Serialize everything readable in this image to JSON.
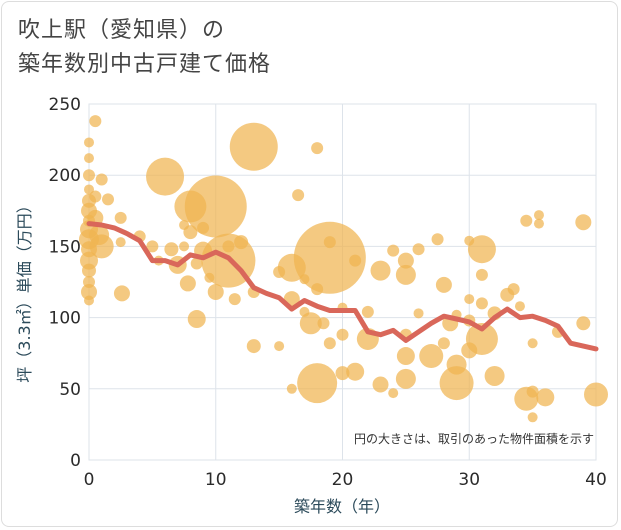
{
  "title_line1": "吹上駅（愛知県）の",
  "title_line2": "築年数別中古戸建て価格",
  "chart_data": {
    "type": "scatter",
    "title": "吹上駅（愛知県）の 築年数別中古戸建て価格",
    "xlabel": "築年数（年）",
    "ylabel": "坪（3.3㎡）単価（万円）",
    "xlim": [
      0,
      40
    ],
    "ylim": [
      0,
      250
    ],
    "xticks": [
      0,
      10,
      20,
      30,
      40
    ],
    "yticks": [
      0,
      50,
      100,
      150,
      200,
      250
    ],
    "grid": true,
    "annotation": "円の大きさは、取引のあった物件面積を示す",
    "colors": {
      "bubble": "#f0b450",
      "line": "#d9675a",
      "grid": "#dde3ea"
    },
    "bubbles": [
      {
        "x": 0,
        "y": 223,
        "r": 5
      },
      {
        "x": 0,
        "y": 212,
        "r": 5
      },
      {
        "x": 0,
        "y": 200,
        "r": 6
      },
      {
        "x": 0,
        "y": 190,
        "r": 5
      },
      {
        "x": 0,
        "y": 182,
        "r": 7
      },
      {
        "x": 0,
        "y": 175,
        "r": 8
      },
      {
        "x": 0,
        "y": 168,
        "r": 6
      },
      {
        "x": 0,
        "y": 162,
        "r": 9
      },
      {
        "x": 0,
        "y": 155,
        "r": 10
      },
      {
        "x": 0,
        "y": 148,
        "r": 8
      },
      {
        "x": 0,
        "y": 140,
        "r": 9
      },
      {
        "x": 0,
        "y": 133,
        "r": 7
      },
      {
        "x": 0,
        "y": 125,
        "r": 6
      },
      {
        "x": 0,
        "y": 118,
        "r": 8
      },
      {
        "x": 0,
        "y": 112,
        "r": 5
      },
      {
        "x": 0.5,
        "y": 238,
        "r": 6
      },
      {
        "x": 0.5,
        "y": 185,
        "r": 6
      },
      {
        "x": 0.5,
        "y": 170,
        "r": 8
      },
      {
        "x": 0.8,
        "y": 158,
        "r": 10
      },
      {
        "x": 1,
        "y": 150,
        "r": 12
      },
      {
        "x": 1,
        "y": 197,
        "r": 6
      },
      {
        "x": 1.5,
        "y": 183,
        "r": 6
      },
      {
        "x": 2.5,
        "y": 170,
        "r": 6
      },
      {
        "x": 2.5,
        "y": 153,
        "r": 5
      },
      {
        "x": 2.6,
        "y": 117,
        "r": 8
      },
      {
        "x": 4,
        "y": 157,
        "r": 6
      },
      {
        "x": 5,
        "y": 150,
        "r": 6
      },
      {
        "x": 5.5,
        "y": 140,
        "r": 5
      },
      {
        "x": 6,
        "y": 199,
        "r": 19
      },
      {
        "x": 6.5,
        "y": 148,
        "r": 7
      },
      {
        "x": 7,
        "y": 137,
        "r": 9
      },
      {
        "x": 7.5,
        "y": 165,
        "r": 5
      },
      {
        "x": 7.5,
        "y": 150,
        "r": 5
      },
      {
        "x": 7.8,
        "y": 124,
        "r": 8
      },
      {
        "x": 8,
        "y": 160,
        "r": 7
      },
      {
        "x": 8,
        "y": 178,
        "r": 16
      },
      {
        "x": 8.5,
        "y": 138,
        "r": 6
      },
      {
        "x": 8.5,
        "y": 99,
        "r": 9
      },
      {
        "x": 9,
        "y": 163,
        "r": 6
      },
      {
        "x": 9,
        "y": 147,
        "r": 9
      },
      {
        "x": 9.5,
        "y": 128,
        "r": 5
      },
      {
        "x": 10,
        "y": 178,
        "r": 31
      },
      {
        "x": 10,
        "y": 118,
        "r": 8
      },
      {
        "x": 11,
        "y": 140,
        "r": 27
      },
      {
        "x": 11,
        "y": 150,
        "r": 6
      },
      {
        "x": 11.5,
        "y": 113,
        "r": 6
      },
      {
        "x": 12,
        "y": 153,
        "r": 7
      },
      {
        "x": 13,
        "y": 220,
        "r": 24
      },
      {
        "x": 13,
        "y": 118,
        "r": 6
      },
      {
        "x": 13,
        "y": 80,
        "r": 7
      },
      {
        "x": 15,
        "y": 132,
        "r": 6
      },
      {
        "x": 15,
        "y": 80,
        "r": 5
      },
      {
        "x": 16,
        "y": 135,
        "r": 14
      },
      {
        "x": 16,
        "y": 113,
        "r": 8
      },
      {
        "x": 16,
        "y": 50,
        "r": 5
      },
      {
        "x": 16.5,
        "y": 186,
        "r": 6
      },
      {
        "x": 17,
        "y": 127,
        "r": 5
      },
      {
        "x": 17,
        "y": 104,
        "r": 5
      },
      {
        "x": 17.5,
        "y": 96,
        "r": 11
      },
      {
        "x": 18,
        "y": 219,
        "r": 6
      },
      {
        "x": 18,
        "y": 120,
        "r": 6
      },
      {
        "x": 18,
        "y": 54,
        "r": 20
      },
      {
        "x": 18.5,
        "y": 96,
        "r": 6
      },
      {
        "x": 19,
        "y": 142,
        "r": 36
      },
      {
        "x": 19,
        "y": 153,
        "r": 6
      },
      {
        "x": 19,
        "y": 82,
        "r": 6
      },
      {
        "x": 20,
        "y": 107,
        "r": 5
      },
      {
        "x": 20,
        "y": 88,
        "r": 6
      },
      {
        "x": 20,
        "y": 61,
        "r": 7
      },
      {
        "x": 21,
        "y": 140,
        "r": 6
      },
      {
        "x": 21,
        "y": 62,
        "r": 9
      },
      {
        "x": 22,
        "y": 104,
        "r": 6
      },
      {
        "x": 22,
        "y": 85,
        "r": 11
      },
      {
        "x": 23,
        "y": 133,
        "r": 10
      },
      {
        "x": 23,
        "y": 53,
        "r": 8
      },
      {
        "x": 24,
        "y": 147,
        "r": 6
      },
      {
        "x": 24,
        "y": 47,
        "r": 5
      },
      {
        "x": 25,
        "y": 140,
        "r": 8
      },
      {
        "x": 25,
        "y": 130,
        "r": 10
      },
      {
        "x": 25,
        "y": 88,
        "r": 6
      },
      {
        "x": 25,
        "y": 73,
        "r": 9
      },
      {
        "x": 25,
        "y": 57,
        "r": 10
      },
      {
        "x": 26,
        "y": 148,
        "r": 6
      },
      {
        "x": 26,
        "y": 103,
        "r": 5
      },
      {
        "x": 27,
        "y": 73,
        "r": 12
      },
      {
        "x": 27.5,
        "y": 155,
        "r": 6
      },
      {
        "x": 28,
        "y": 123,
        "r": 8
      },
      {
        "x": 28,
        "y": 82,
        "r": 6
      },
      {
        "x": 28.5,
        "y": 96,
        "r": 8
      },
      {
        "x": 29,
        "y": 102,
        "r": 5
      },
      {
        "x": 29,
        "y": 67,
        "r": 10
      },
      {
        "x": 29,
        "y": 54,
        "r": 17
      },
      {
        "x": 30,
        "y": 154,
        "r": 5
      },
      {
        "x": 30,
        "y": 113,
        "r": 5
      },
      {
        "x": 30,
        "y": 98,
        "r": 6
      },
      {
        "x": 30,
        "y": 77,
        "r": 8
      },
      {
        "x": 31,
        "y": 148,
        "r": 14
      },
      {
        "x": 31,
        "y": 130,
        "r": 6
      },
      {
        "x": 31,
        "y": 110,
        "r": 6
      },
      {
        "x": 31,
        "y": 85,
        "r": 16
      },
      {
        "x": 32,
        "y": 103,
        "r": 7
      },
      {
        "x": 32,
        "y": 59,
        "r": 10
      },
      {
        "x": 33,
        "y": 116,
        "r": 7
      },
      {
        "x": 33.5,
        "y": 120,
        "r": 6
      },
      {
        "x": 34,
        "y": 108,
        "r": 5
      },
      {
        "x": 34.5,
        "y": 168,
        "r": 6
      },
      {
        "x": 34.5,
        "y": 43,
        "r": 12
      },
      {
        "x": 35,
        "y": 48,
        "r": 6
      },
      {
        "x": 35,
        "y": 82,
        "r": 5
      },
      {
        "x": 35.5,
        "y": 172,
        "r": 5
      },
      {
        "x": 35.5,
        "y": 166,
        "r": 5
      },
      {
        "x": 36,
        "y": 44,
        "r": 9
      },
      {
        "x": 37,
        "y": 90,
        "r": 6
      },
      {
        "x": 39,
        "y": 167,
        "r": 8
      },
      {
        "x": 39,
        "y": 96,
        "r": 7
      },
      {
        "x": 40,
        "y": 46,
        "r": 12
      },
      {
        "x": 35,
        "y": 30,
        "r": 5
      }
    ],
    "line": {
      "x": [
        0,
        1,
        2,
        3,
        4,
        5,
        6,
        7,
        8,
        9,
        10,
        11,
        12,
        13,
        14,
        15,
        16,
        17,
        18,
        19,
        20,
        21,
        22,
        23,
        24,
        25,
        26,
        27,
        28,
        29,
        30,
        31,
        32,
        33,
        34,
        35,
        36,
        37,
        38,
        39,
        40
      ],
      "y": [
        166,
        165,
        163,
        159,
        154,
        140,
        140,
        137,
        144,
        142,
        146,
        142,
        133,
        121,
        117,
        114,
        106,
        112,
        108,
        105,
        105,
        105,
        90,
        88,
        91,
        84,
        90,
        96,
        101,
        99,
        97,
        92,
        100,
        106,
        100,
        101,
        98,
        94,
        82,
        80,
        78
      ]
    }
  }
}
